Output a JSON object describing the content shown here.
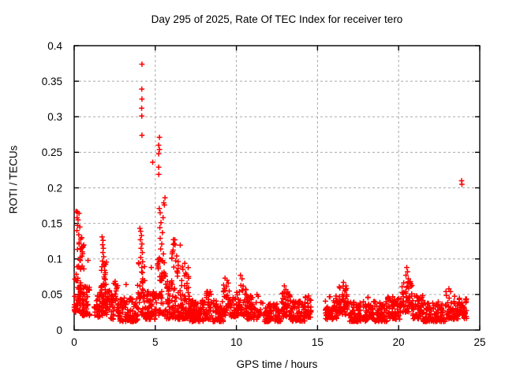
{
  "chart_data": {
    "type": "scatter",
    "title": "Day 295 of 2025, Rate Of TEC Index for receiver tero",
    "xlabel": "GPS time / hours",
    "ylabel": "ROTI / TECUs",
    "xlim": [
      0,
      25
    ],
    "ylim": [
      0,
      0.4
    ],
    "xticks": {
      "values": [
        0,
        5,
        10,
        15,
        20,
        25
      ],
      "labels": [
        "0",
        "5",
        "10",
        "15",
        "20",
        "25"
      ]
    },
    "yticks": {
      "values": [
        0,
        0.05,
        0.1,
        0.15,
        0.2,
        0.25,
        0.3,
        0.35,
        0.4
      ],
      "labels": [
        "0",
        "0.05",
        "0.1",
        "0.15",
        "0.2",
        "0.25",
        "0.3",
        "0.35",
        "0.4"
      ]
    },
    "grid": {
      "visible": true,
      "style": "dashed",
      "color": "#a9a9a9"
    },
    "legend": {
      "visible": false
    },
    "marker": {
      "shape": "plus",
      "color": "#ff0000",
      "size": 7
    },
    "axis_color": "#000000",
    "background": "#ffffff",
    "data_gaps_hours": [
      [
        0.95,
        1.4
      ],
      [
        14.6,
        15.45
      ]
    ],
    "max_point": [
      4.18,
      0.374
    ],
    "notable_points_format": "[gps_hour, roti_tecu]",
    "notable_points": [
      [
        0.12,
        0.167
      ],
      [
        0.2,
        0.166
      ],
      [
        0.3,
        0.164
      ],
      [
        0.18,
        0.158
      ],
      [
        0.24,
        0.155
      ],
      [
        0.21,
        0.147
      ],
      [
        0.17,
        0.14
      ],
      [
        0.35,
        0.145
      ],
      [
        0.28,
        0.134
      ],
      [
        0.4,
        0.128
      ],
      [
        0.3,
        0.121
      ],
      [
        0.45,
        0.115
      ],
      [
        0.5,
        0.11
      ],
      [
        0.55,
        0.118
      ],
      [
        0.48,
        0.104
      ],
      [
        0.38,
        0.098
      ],
      [
        0.27,
        0.09
      ],
      [
        0.6,
        0.086
      ],
      [
        0.85,
        0.098
      ],
      [
        1.72,
        0.131
      ],
      [
        1.78,
        0.126
      ],
      [
        1.75,
        0.12
      ],
      [
        1.8,
        0.115
      ],
      [
        1.77,
        0.109
      ],
      [
        1.82,
        0.103
      ],
      [
        1.74,
        0.097
      ],
      [
        1.85,
        0.09
      ],
      [
        1.88,
        0.084
      ],
      [
        1.9,
        0.078
      ],
      [
        1.92,
        0.071
      ],
      [
        1.8,
        0.065
      ],
      [
        3.2,
        0.064
      ],
      [
        4.18,
        0.374
      ],
      [
        4.17,
        0.339
      ],
      [
        4.18,
        0.325
      ],
      [
        4.16,
        0.312
      ],
      [
        4.17,
        0.301
      ],
      [
        4.18,
        0.274
      ],
      [
        4.84,
        0.236
      ],
      [
        4.05,
        0.143
      ],
      [
        4.1,
        0.139
      ],
      [
        4.15,
        0.133
      ],
      [
        4.08,
        0.127
      ],
      [
        4.18,
        0.121
      ],
      [
        4.12,
        0.115
      ],
      [
        4.2,
        0.109
      ],
      [
        4.1,
        0.102
      ],
      [
        4.22,
        0.096
      ],
      [
        4.75,
        0.088
      ],
      [
        5.26,
        0.271
      ],
      [
        5.21,
        0.26
      ],
      [
        5.26,
        0.254
      ],
      [
        5.21,
        0.248
      ],
      [
        5.21,
        0.229
      ],
      [
        5.22,
        0.219
      ],
      [
        5.6,
        0.186
      ],
      [
        5.52,
        0.179
      ],
      [
        5.56,
        0.176
      ],
      [
        5.25,
        0.171
      ],
      [
        5.3,
        0.165
      ],
      [
        5.48,
        0.158
      ],
      [
        5.35,
        0.151
      ],
      [
        5.28,
        0.144
      ],
      [
        5.44,
        0.137
      ],
      [
        5.3,
        0.129
      ],
      [
        5.4,
        0.121
      ],
      [
        5.33,
        0.114
      ],
      [
        5.5,
        0.107
      ],
      [
        5.25,
        0.101
      ],
      [
        9.3,
        0.073
      ],
      [
        9.42,
        0.07
      ],
      [
        9.5,
        0.066
      ],
      [
        10.25,
        0.077
      ],
      [
        10.35,
        0.072
      ],
      [
        12.95,
        0.062
      ],
      [
        13.05,
        0.057
      ],
      [
        16.6,
        0.067
      ],
      [
        16.75,
        0.062
      ],
      [
        20.5,
        0.088
      ],
      [
        20.55,
        0.082
      ],
      [
        20.45,
        0.077
      ],
      [
        20.6,
        0.072
      ],
      [
        23.1,
        0.058
      ],
      [
        23.2,
        0.054
      ],
      [
        23.88,
        0.21
      ],
      [
        23.9,
        0.205
      ]
    ],
    "dense_bands_format": "[hour_start, hour_end, point_count, roti_min, roti_max, low_bias_exponent]",
    "dense_bands": [
      [
        0.0,
        0.45,
        55,
        0.025,
        0.075,
        1.6
      ],
      [
        0.05,
        0.65,
        14,
        0.078,
        0.13,
        1.0
      ],
      [
        0.45,
        0.95,
        45,
        0.02,
        0.062,
        1.6
      ],
      [
        0.95,
        1.4,
        10,
        0.02,
        0.045,
        1.3
      ],
      [
        1.4,
        1.85,
        40,
        0.018,
        0.055,
        1.6
      ],
      [
        1.65,
        2.0,
        16,
        0.055,
        0.1,
        1.2
      ],
      [
        1.85,
        2.2,
        30,
        0.02,
        0.06,
        1.6
      ],
      [
        2.2,
        2.45,
        24,
        0.015,
        0.05,
        1.6
      ],
      [
        2.45,
        2.7,
        16,
        0.028,
        0.07,
        1.4
      ],
      [
        2.7,
        3.9,
        105,
        0.012,
        0.045,
        1.7
      ],
      [
        3.9,
        4.35,
        40,
        0.02,
        0.095,
        1.5
      ],
      [
        4.35,
        5.15,
        68,
        0.015,
        0.055,
        1.6
      ],
      [
        5.15,
        5.65,
        45,
        0.02,
        0.1,
        1.4
      ],
      [
        5.65,
        6.55,
        70,
        0.015,
        0.07,
        1.5
      ],
      [
        6.0,
        6.55,
        22,
        0.07,
        0.128,
        1.1
      ],
      [
        6.55,
        7.1,
        50,
        0.015,
        0.06,
        1.5
      ],
      [
        6.6,
        7.05,
        13,
        0.06,
        0.098,
        1.1
      ],
      [
        7.1,
        8.1,
        80,
        0.012,
        0.042,
        1.7
      ],
      [
        8.1,
        8.55,
        38,
        0.015,
        0.055,
        1.6
      ],
      [
        8.55,
        9.2,
        52,
        0.012,
        0.042,
        1.7
      ],
      [
        9.2,
        9.65,
        36,
        0.02,
        0.065,
        1.4
      ],
      [
        9.65,
        10.0,
        28,
        0.018,
        0.052,
        1.6
      ],
      [
        10.0,
        10.6,
        48,
        0.02,
        0.063,
        1.5
      ],
      [
        10.6,
        11.35,
        55,
        0.015,
        0.05,
        1.6
      ],
      [
        11.35,
        11.7,
        12,
        0.02,
        0.05,
        1.4
      ],
      [
        11.7,
        12.8,
        88,
        0.012,
        0.04,
        1.7
      ],
      [
        12.8,
        13.3,
        42,
        0.018,
        0.055,
        1.5
      ],
      [
        13.3,
        14.25,
        72,
        0.012,
        0.042,
        1.7
      ],
      [
        14.25,
        14.6,
        28,
        0.018,
        0.05,
        1.5
      ],
      [
        15.45,
        16.3,
        66,
        0.015,
        0.048,
        1.6
      ],
      [
        16.3,
        16.95,
        50,
        0.02,
        0.062,
        1.4
      ],
      [
        16.95,
        18.1,
        92,
        0.012,
        0.04,
        1.7
      ],
      [
        18.1,
        18.5,
        32,
        0.015,
        0.048,
        1.6
      ],
      [
        18.5,
        19.3,
        60,
        0.012,
        0.04,
        1.7
      ],
      [
        19.3,
        19.65,
        24,
        0.015,
        0.05,
        1.5
      ],
      [
        19.65,
        20.15,
        40,
        0.015,
        0.045,
        1.6
      ],
      [
        20.15,
        20.85,
        52,
        0.025,
        0.07,
        1.3
      ],
      [
        20.85,
        21.5,
        50,
        0.015,
        0.05,
        1.6
      ],
      [
        21.5,
        22.9,
        105,
        0.012,
        0.04,
        1.7
      ],
      [
        22.9,
        23.45,
        45,
        0.015,
        0.055,
        1.5
      ],
      [
        23.45,
        24.2,
        58,
        0.015,
        0.048,
        1.6
      ]
    ],
    "seed": 295
  }
}
